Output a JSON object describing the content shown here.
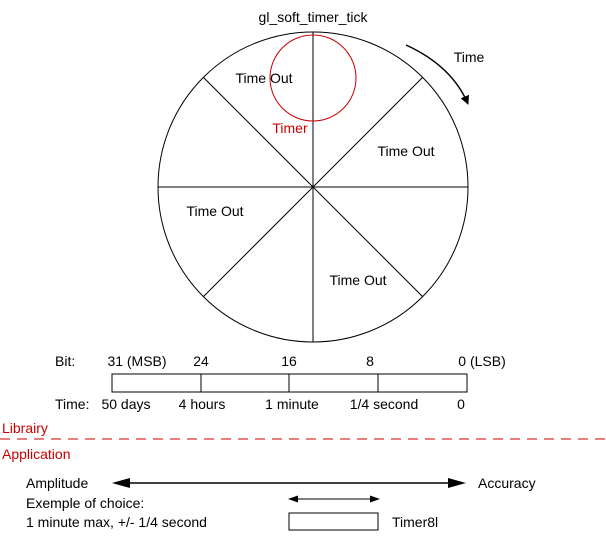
{
  "diagram": {
    "tick_label": "gl_soft_timer_tick",
    "direction_label": "Time",
    "timer_label": "Timer",
    "sectors": [
      {
        "label": "Time Out"
      },
      {
        "label": "Time Out"
      },
      {
        "label": "Time Out"
      },
      {
        "label": "Time Out"
      }
    ]
  },
  "bits": {
    "heading": "Bit:",
    "labels": [
      "31 (MSB)",
      "24",
      "16",
      "8",
      "0 (LSB)"
    ]
  },
  "times": {
    "heading": "Time:",
    "labels": [
      "50 days",
      "4 hours",
      "1 minute",
      "1/4 second",
      "0"
    ]
  },
  "layers": {
    "upper": "Librairy",
    "lower": "Application"
  },
  "scale": {
    "left": "Amplitude",
    "right": "Accuracy"
  },
  "example": {
    "line1": "Exemple of choice:",
    "line2": "1 minute max, +/- 1/4 second",
    "timer_name": "Timer8l"
  },
  "colors": {
    "line": "#000000",
    "accent": "#cc0000"
  }
}
